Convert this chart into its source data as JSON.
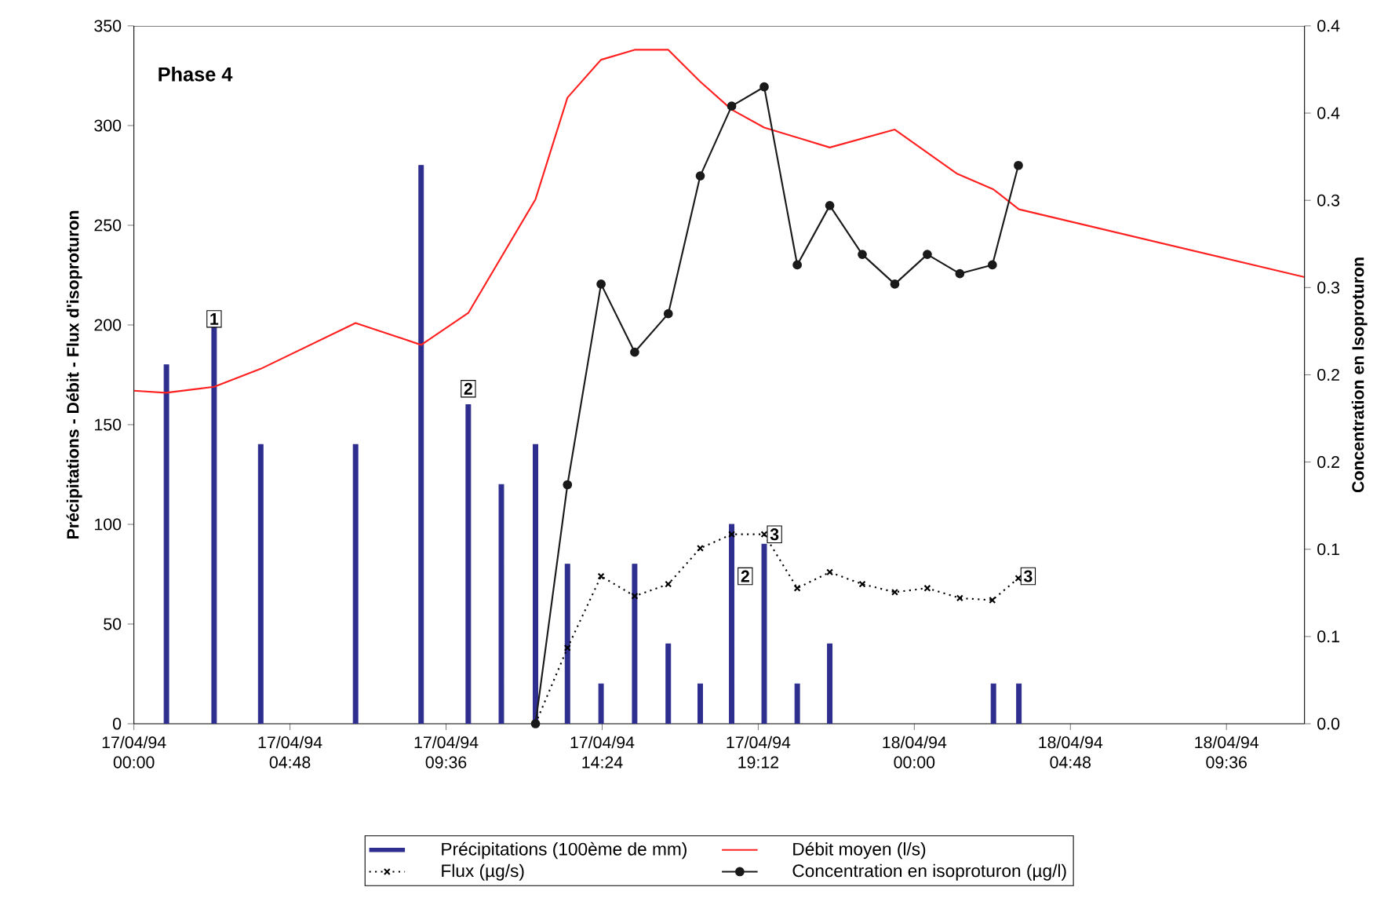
{
  "chart_data": {
    "type": "line",
    "ylabel": "Précipitations - Débit - Flux d'isoproturon",
    "y2label": "Concentration en Isoproturon",
    "xlim": [
      "1994-04-17T00:00",
      "1994-04-18T12:00"
    ],
    "ylim": [
      0,
      350
    ],
    "y2lim": [
      0,
      0.4
    ],
    "xticks": [
      {
        "value": "1994-04-17T00:00",
        "label": "17/04/94 00:00"
      },
      {
        "value": "1994-04-17T04:48",
        "label": "17/04/94 04:48"
      },
      {
        "value": "1994-04-17T09:36",
        "label": "17/04/94 09:36"
      },
      {
        "value": "1994-04-17T14:24",
        "label": "17/04/94 14:24"
      },
      {
        "value": "1994-04-17T19:12",
        "label": "17/04/94 19:12"
      },
      {
        "value": "1994-04-18T00:00",
        "label": "18/04/94 00:00"
      },
      {
        "value": "1994-04-18T04:48",
        "label": "18/04/94 04:48"
      },
      {
        "value": "1994-04-18T09:36",
        "label": "18/04/94 09:36"
      }
    ],
    "yticks": [
      0,
      50,
      100,
      150,
      200,
      250,
      300,
      350
    ],
    "y2ticks": [
      {
        "value": 0,
        "label": "0.0"
      },
      {
        "value": 0.05,
        "label": "0.1"
      },
      {
        "value": 0.1,
        "label": "0.1"
      },
      {
        "value": 0.15,
        "label": "0.2"
      },
      {
        "value": 0.2,
        "label": "0.2"
      },
      {
        "value": 0.25,
        "label": "0.3"
      },
      {
        "value": 0.3,
        "label": "0.3"
      },
      {
        "value": 0.35,
        "label": "0.4"
      },
      {
        "value": 0.4,
        "label": "0.4"
      }
    ],
    "legend": "bottom",
    "series": [
      {
        "name": "Précipitations (100ème de mm)",
        "type": "bar",
        "color": "#2e2e8f",
        "x": [
          "1994-04-17T01:00",
          "1994-04-17T02:28",
          "1994-04-17T03:54",
          "1994-04-17T06:49",
          "1994-04-17T08:50",
          "1994-04-17T10:17",
          "1994-04-17T11:18",
          "1994-04-17T12:21",
          "1994-04-17T13:20",
          "1994-04-17T14:22",
          "1994-04-17T15:24",
          "1994-04-17T16:26",
          "1994-04-17T17:25",
          "1994-04-17T18:23",
          "1994-04-17T19:23",
          "1994-04-17T20:24",
          "1994-04-17T21:24",
          "1994-04-18T02:26",
          "1994-04-18T03:13"
        ],
        "values": [
          180,
          200,
          140,
          140,
          280,
          160,
          120,
          140,
          80,
          20,
          80,
          40,
          20,
          100,
          90,
          20,
          40,
          20,
          20
        ]
      },
      {
        "name": "Débit moyen (l/s)",
        "color": "#ff2020",
        "marker": "none",
        "line_style": "solid",
        "x": [
          "1994-04-17T00:00",
          "1994-04-17T00:59",
          "1994-04-17T02:28",
          "1994-04-17T03:54",
          "1994-04-17T06:49",
          "1994-04-17T08:50",
          "1994-04-17T10:17",
          "1994-04-17T12:21",
          "1994-04-17T13:20",
          "1994-04-17T14:22",
          "1994-04-17T15:24",
          "1994-04-17T16:26",
          "1994-04-17T17:25",
          "1994-04-17T18:23",
          "1994-04-17T19:23",
          "1994-04-17T20:24",
          "1994-04-17T21:24",
          "1994-04-17T23:24",
          "1994-04-18T01:18",
          "1994-04-18T02:26",
          "1994-04-18T03:13",
          "1994-04-18T12:00"
        ],
        "values": [
          167,
          166,
          169,
          178,
          201,
          190,
          206,
          263,
          314,
          333,
          338,
          338,
          322,
          308,
          299,
          294,
          289,
          298,
          276,
          268,
          258,
          224
        ]
      },
      {
        "name": "Flux (µg/s)",
        "color": "#000000",
        "marker": "cross",
        "line_style": "dotted",
        "x": [
          "1994-04-17T12:21",
          "1994-04-17T13:20",
          "1994-04-17T14:22",
          "1994-04-17T15:24",
          "1994-04-17T16:26",
          "1994-04-17T17:25",
          "1994-04-17T18:23",
          "1994-04-17T19:23",
          "1994-04-17T20:24",
          "1994-04-17T21:24",
          "1994-04-17T22:24",
          "1994-04-17T23:24",
          "1994-04-18T00:24",
          "1994-04-18T01:24",
          "1994-04-18T02:24",
          "1994-04-18T03:12"
        ],
        "values": [
          0,
          38,
          74,
          64,
          70,
          88,
          95,
          95,
          68,
          76,
          70,
          66,
          68,
          63,
          62,
          73
        ]
      },
      {
        "name": "Concentration en isoproturon (µg/l)",
        "axis": "y2",
        "color": "#1a1a1a",
        "marker": "circle",
        "line_style": "solid",
        "x": [
          "1994-04-17T12:21",
          "1994-04-17T13:20",
          "1994-04-17T14:22",
          "1994-04-17T15:24",
          "1994-04-17T16:26",
          "1994-04-17T17:25",
          "1994-04-17T18:23",
          "1994-04-17T19:23",
          "1994-04-17T20:24",
          "1994-04-17T21:24",
          "1994-04-17T22:24",
          "1994-04-17T23:24",
          "1994-04-18T00:24",
          "1994-04-18T01:24",
          "1994-04-18T02:24",
          "1994-04-18T03:12"
        ],
        "values": [
          0,
          0.137,
          0.252,
          0.213,
          0.235,
          0.314,
          0.354,
          0.365,
          0.263,
          0.297,
          0.269,
          0.252,
          0.269,
          0.258,
          0.263,
          0.32
        ]
      }
    ],
    "annotations": [
      "Phase 4",
      {
        "text": "1",
        "x": "1994-04-17T02:28",
        "y": 203
      },
      {
        "text": "2",
        "x": "1994-04-17T10:17",
        "y": 168
      },
      {
        "text": "3",
        "x": "1994-04-17T19:42",
        "y": 95
      },
      {
        "text": "2",
        "x": "1994-04-17T18:48",
        "y": 74
      },
      {
        "text": "3",
        "x": "1994-04-18T03:30",
        "y": 74
      }
    ]
  }
}
